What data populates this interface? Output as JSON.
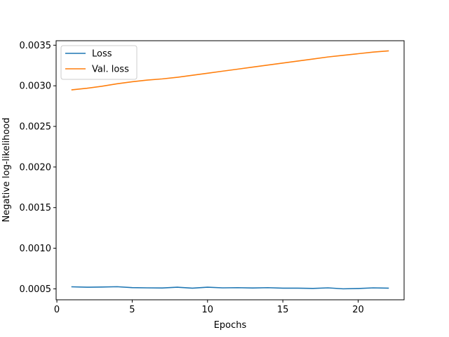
{
  "chart_data": {
    "type": "line",
    "title": "",
    "xlabel": "Epochs",
    "ylabel": "Negative log-likelihood",
    "xlim": [
      -0.05,
      23.05
    ],
    "ylim": [
      0.000365,
      0.003555
    ],
    "xticks": [
      0,
      5,
      10,
      15,
      20
    ],
    "xtick_labels": [
      "0",
      "5",
      "10",
      "15",
      "20"
    ],
    "yticks": [
      0.0005,
      0.001,
      0.0015,
      0.002,
      0.0025,
      0.003,
      0.0035
    ],
    "ytick_labels": [
      "0.0005",
      "0.0010",
      "0.0015",
      "0.0020",
      "0.0025",
      "0.0030",
      "0.0035"
    ],
    "grid": false,
    "legend_position": "top-left",
    "x": [
      1,
      2,
      3,
      4,
      5,
      6,
      7,
      8,
      9,
      10,
      11,
      12,
      13,
      14,
      15,
      16,
      17,
      18,
      19,
      20,
      21,
      22
    ],
    "series": [
      {
        "name": "Loss",
        "color": "#1f77b4",
        "values": [
          0.000525,
          0.00052,
          0.000522,
          0.000526,
          0.000515,
          0.000512,
          0.00051,
          0.00052,
          0.000508,
          0.00052,
          0.000512,
          0.000514,
          0.00051,
          0.000514,
          0.000508,
          0.000508,
          0.000505,
          0.000512,
          0.0005,
          0.000504,
          0.000512,
          0.000508
        ]
      },
      {
        "name": "Val. loss",
        "color": "#ff7f0e",
        "values": [
          0.00295,
          0.00297,
          0.002995,
          0.003025,
          0.00305,
          0.00307,
          0.003085,
          0.003105,
          0.00313,
          0.003155,
          0.00318,
          0.003205,
          0.00323,
          0.003255,
          0.00328,
          0.003305,
          0.00333,
          0.003355,
          0.003375,
          0.003395,
          0.003415,
          0.00343
        ]
      }
    ]
  }
}
